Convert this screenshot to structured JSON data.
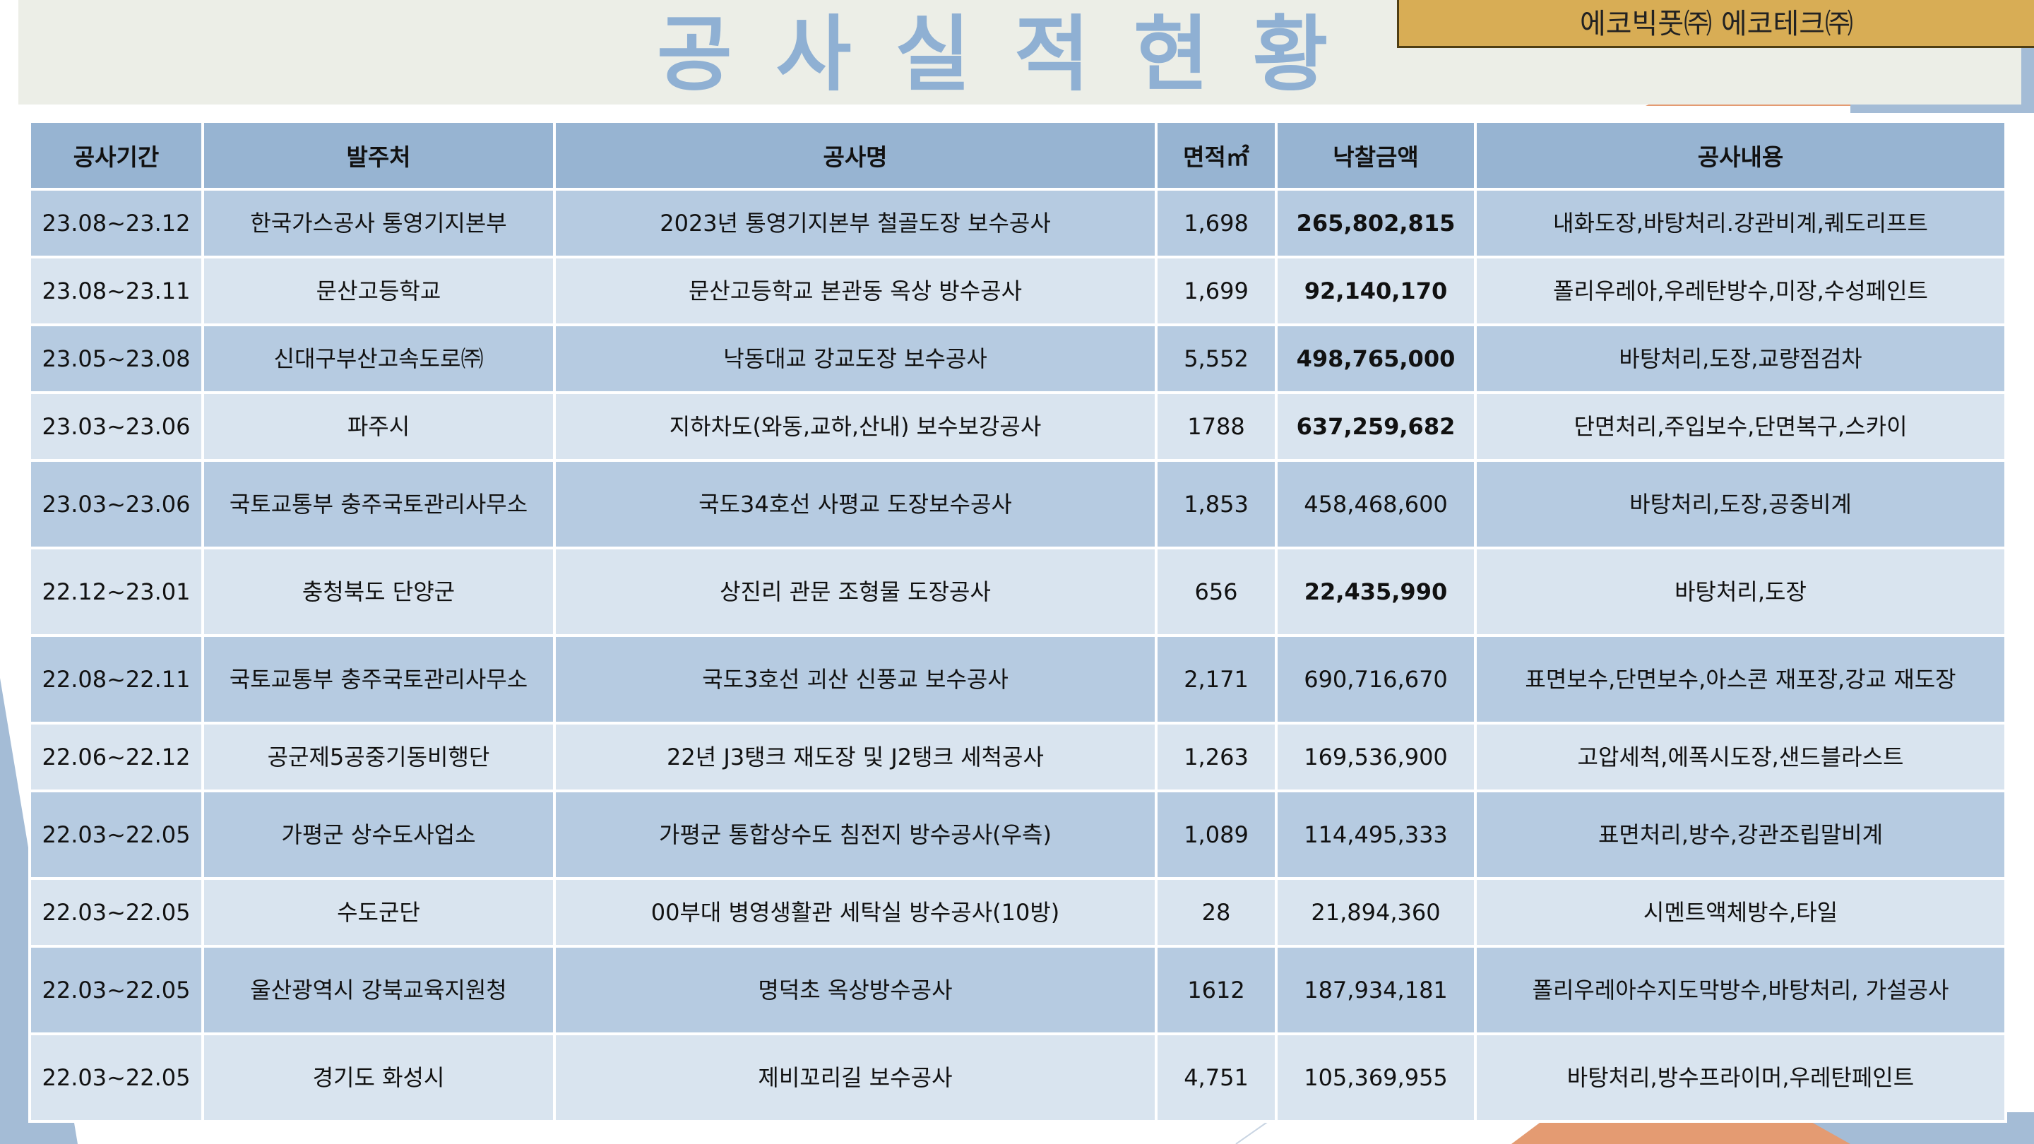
{
  "page": {
    "title": "공사실적현황",
    "company": "에코빅풋㈜ 에코테크㈜"
  },
  "table": {
    "headers": [
      "공사기간",
      "발주처",
      "공사명",
      "면적㎡",
      "낙찰금액",
      "공사내용"
    ],
    "rows": [
      {
        "period": "23.08~23.12",
        "client": "한국가스공사 통영기지본부",
        "project": "2023년 통영기지본부 철골도장 보수공사",
        "area": "1,698",
        "amount": "265,802,815",
        "amount_bold": true,
        "work": "내화도장,바탕처리.강관비계,퀘도리프트"
      },
      {
        "period": "23.08~23.11",
        "client": "문산고등학교",
        "project": "문산고등학교 본관동 옥상 방수공사",
        "area": "1,699",
        "amount": "92,140,170",
        "amount_bold": true,
        "work": "폴리우레아,우레탄방수,미장,수성페인트"
      },
      {
        "period": "23.05~23.08",
        "client": "신대구부산고속도로㈜",
        "project": "낙동대교 강교도장 보수공사",
        "area": "5,552",
        "amount": "498,765,000",
        "amount_bold": true,
        "work": "바탕처리,도장,교량점검차"
      },
      {
        "period": "23.03~23.06",
        "client": "파주시",
        "project": "지하차도(와동,교하,산내) 보수보강공사",
        "area": "1788",
        "amount": "637,259,682",
        "amount_bold": true,
        "work": "단면처리,주입보수,단면복구,스카이"
      },
      {
        "period": "23.03~23.06",
        "client": "국토교통부 충주국토관리사무소",
        "project": "국도34호선 사평교 도장보수공사",
        "area": "1,853",
        "amount": "458,468,600",
        "amount_bold": false,
        "work": "바탕처리,도장,공중비계"
      },
      {
        "period": "22.12~23.01",
        "client": "충청북도 단양군",
        "project": "상진리 관문 조형물 도장공사",
        "area": "656",
        "amount": "22,435,990",
        "amount_bold": true,
        "work": "바탕처리,도장"
      },
      {
        "period": "22.08~22.11",
        "client": "국토교통부 충주국토관리사무소",
        "project": "국도3호선 괴산 신풍교 보수공사",
        "area": "2,171",
        "amount": "690,716,670",
        "amount_bold": false,
        "work": "표면보수,단면보수,아스콘 재포장,강교 재도장"
      },
      {
        "period": "22.06~22.12",
        "client": "공군제5공중기동비행단",
        "project": "22년 J3탱크 재도장 및 J2탱크 세척공사",
        "area": "1,263",
        "amount": "169,536,900",
        "amount_bold": false,
        "work": "고압세척,에폭시도장,샌드블라스트"
      },
      {
        "period": "22.03~22.05",
        "client": "가평군 상수도사업소",
        "project": "가평군 통합상수도 침전지 방수공사(우측)",
        "area": "1,089",
        "amount": "114,495,333",
        "amount_bold": false,
        "work": "표면처리,방수,강관조립말비계"
      },
      {
        "period": "22.03~22.05",
        "client": "수도군단",
        "project": "00부대 병영생활관 세탁실 방수공사(10방)",
        "area": "28",
        "amount": "21,894,360",
        "amount_bold": false,
        "work": "시멘트액체방수,타일"
      },
      {
        "period": "22.03~22.05",
        "client": "울산광역시 강북교육지원청",
        "project": "명덕초 옥상방수공사",
        "area": "1612",
        "amount": "187,934,181",
        "amount_bold": false,
        "work": "폴리우레아수지도막방수,바탕처리, 가설공사"
      },
      {
        "period": "22.03~22.05",
        "client": "경기도 화성시",
        "project": "제비꼬리길 보수공사",
        "area": "4,751",
        "amount": "105,369,955",
        "amount_bold": false,
        "work": "바탕처리,방수프라이머,우레탄페인트"
      }
    ]
  },
  "colors": {
    "title": "#8fb0d3",
    "header_bg": "#97b4d2",
    "row_dark": "#b6cbe1",
    "row_light": "#d9e4ef",
    "badge_bg": "#d8ad55",
    "accent_orange": "#e49b72",
    "accent_blue": "#a4bcd6"
  }
}
